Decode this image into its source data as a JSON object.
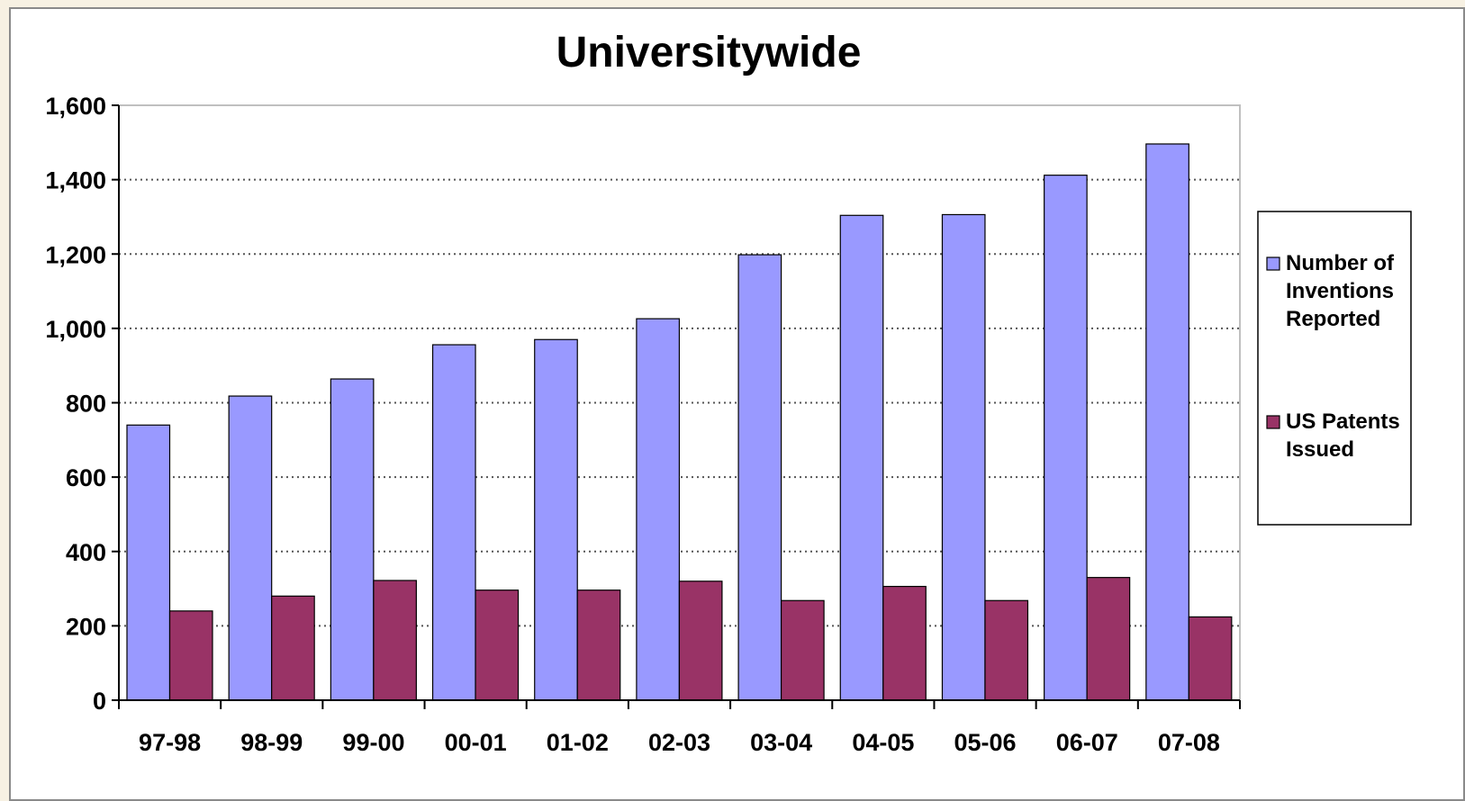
{
  "chart_data": {
    "type": "bar",
    "title": "Universitywide",
    "categories": [
      "97-98",
      "98-99",
      "99-00",
      "00-01",
      "01-02",
      "02-03",
      "03-04",
      "04-05",
      "05-06",
      "06-07",
      "07-08"
    ],
    "series": [
      {
        "name": "Number of Inventions Reported",
        "legend_lines": [
          "Number of",
          "Inventions",
          "Reported"
        ],
        "color": "#9999ff",
        "values": [
          740,
          818,
          864,
          956,
          970,
          1026,
          1198,
          1304,
          1306,
          1412,
          1496
        ]
      },
      {
        "name": "US Patents Issued",
        "legend_lines": [
          "US Patents",
          "Issued"
        ],
        "color": "#993366",
        "values": [
          240,
          280,
          322,
          296,
          296,
          320,
          268,
          306,
          268,
          330,
          224
        ]
      }
    ],
    "ylim": [
      0,
      1600
    ],
    "yticks": [
      0,
      200,
      400,
      600,
      800,
      1000,
      1200,
      1400,
      1600
    ],
    "ytick_labels": [
      "0",
      "200",
      "400",
      "600",
      "800",
      "1,000",
      "1,200",
      "1,400",
      "1,600"
    ],
    "xlabel": "",
    "ylabel": "",
    "grid": true,
    "legend_position": "right"
  }
}
